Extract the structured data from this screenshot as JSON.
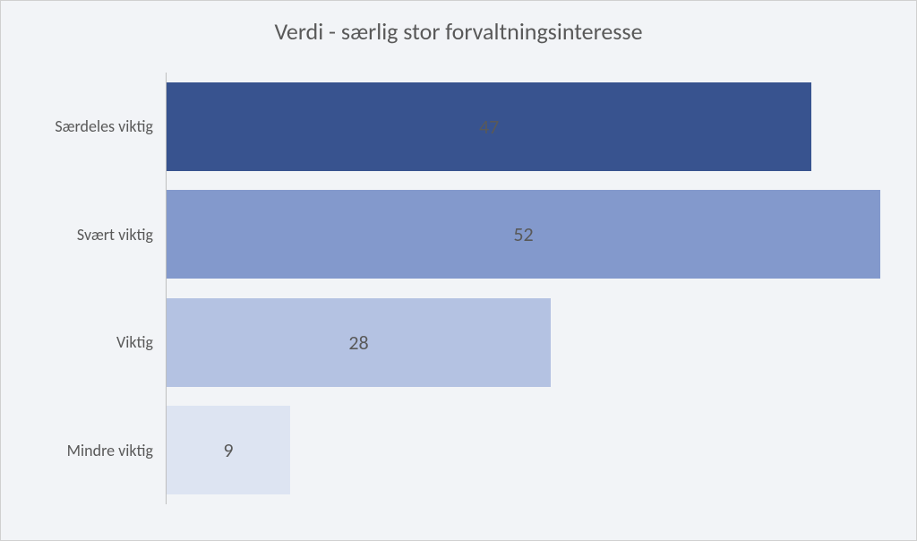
{
  "chart": {
    "type": "bar-horizontal",
    "title": "Verdi - særlig stor forvaltningsinteresse",
    "title_fontsize": 26,
    "background_color": "#f2f4f7",
    "text_color": "#595959",
    "label_fontsize": 18,
    "value_fontsize": 22,
    "xlim_max": 52,
    "bar_gap_pct": 18,
    "axis_line_color": "#bfbfbf",
    "categories": [
      {
        "label": "Særdeles viktig",
        "value": 47,
        "color": "#38538f"
      },
      {
        "label": "Svært viktig",
        "value": 52,
        "color": "#8399cc"
      },
      {
        "label": "Viktig",
        "value": 28,
        "color": "#b4c2e2"
      },
      {
        "label": "Mindre viktig",
        "value": 9,
        "color": "#dde4f2"
      }
    ]
  }
}
